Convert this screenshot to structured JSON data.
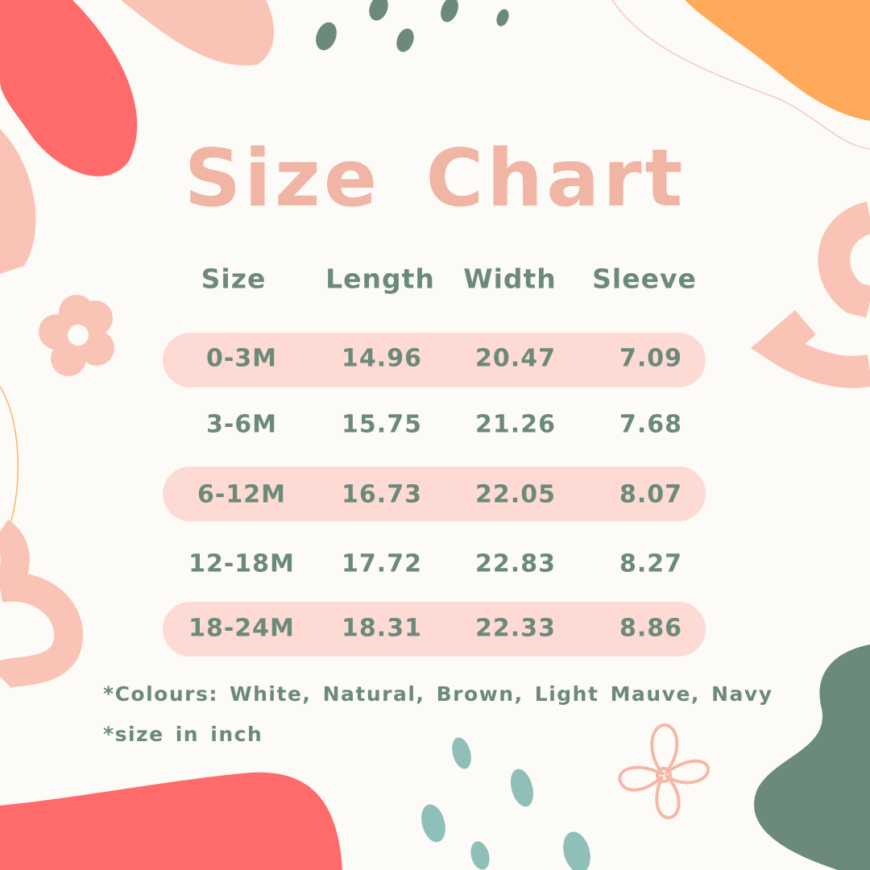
{
  "title": "Size Chart",
  "colors": {
    "background": "#fdfbf7",
    "title": "#f0b5a4",
    "text": "#6b8a7a",
    "row_band": "#fddad3",
    "red": "#ff6b6b",
    "pink": "#f9c4b5",
    "orange": "#ffa95a",
    "green": "#6b8a7a",
    "teal": "#8fbfb8"
  },
  "table": {
    "headers": [
      "Size",
      "Length",
      "Width",
      "Sleeve"
    ],
    "rows": [
      [
        "0-3M",
        "14.96",
        "20.47",
        "7.09"
      ],
      [
        "3-6M",
        "15.75",
        "21.26",
        "7.68"
      ],
      [
        "6-12M",
        "16.73",
        "22.05",
        "8.07"
      ],
      [
        "12-18M",
        "17.72",
        "22.83",
        "8.27"
      ],
      [
        "18-24M",
        "18.31",
        "22.33",
        "8.86"
      ]
    ]
  },
  "notes": {
    "colours": "*Colours: White, Natural, Brown, Light Mauve, Navy",
    "unit": "*size in inch"
  }
}
